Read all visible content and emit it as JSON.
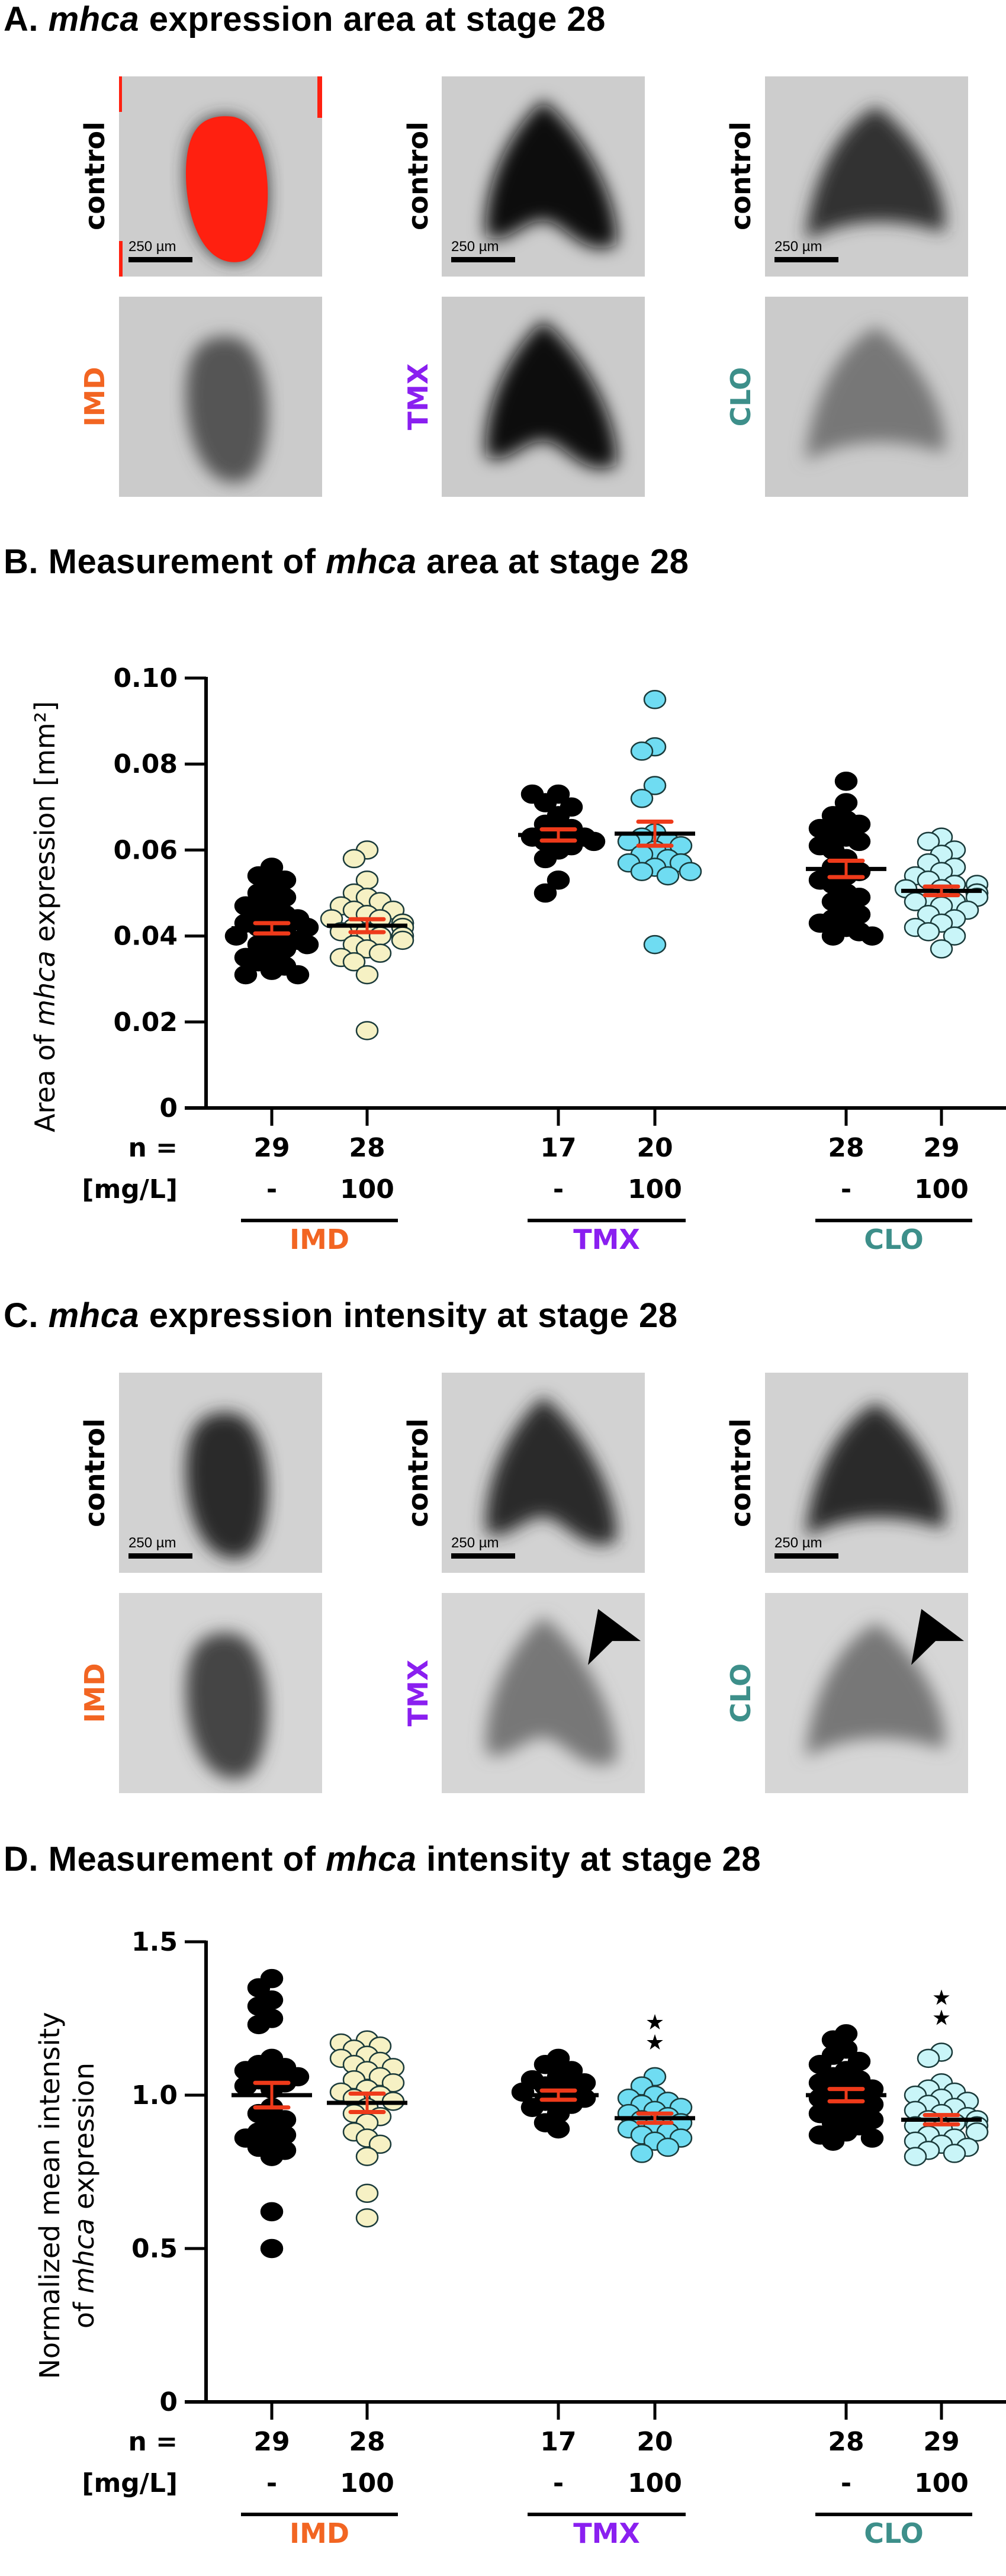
{
  "panels": {
    "A": {
      "letter": "A.",
      "title_italic": "mhca",
      "title_rest": " expression area at stage 28",
      "columns": [
        {
          "control_label": "control",
          "treated_label": "IMD",
          "scale_bar": "250 µm",
          "control_overlay": "red-threshold",
          "treated_intensity": "medium"
        },
        {
          "control_label": "control",
          "treated_label": "TMX",
          "scale_bar": "250 µm",
          "control_overlay": "none",
          "treated_intensity": "dark"
        },
        {
          "control_label": "control",
          "treated_label": "CLO",
          "scale_bar": "250 µm",
          "control_overlay": "none",
          "treated_intensity": "light"
        }
      ]
    },
    "B": {
      "letter": "B.",
      "title_pre": "Measurement of ",
      "title_italic": "mhca",
      "title_rest": " area at stage 28"
    },
    "C": {
      "letter": "C.",
      "title_italic": "mhca",
      "title_rest": " expression intensity at stage 28",
      "columns": [
        {
          "control_label": "control",
          "treated_label": "IMD",
          "scale_bar": "250 µm",
          "arrowhead": false
        },
        {
          "control_label": "control",
          "treated_label": "TMX",
          "scale_bar": "250 µm",
          "arrowhead": true
        },
        {
          "control_label": "control",
          "treated_label": "CLO",
          "scale_bar": "250 µm",
          "arrowhead": true
        }
      ]
    },
    "D": {
      "letter": "D.",
      "title_pre": "Measurement of ",
      "title_italic": "mhca",
      "title_rest": " intensity at stage 28"
    }
  },
  "colors": {
    "IMD": "#f26522",
    "TMX": "#8a1ff0",
    "CLO": "#3d8f8a",
    "control_point": "#000000",
    "IMD_treated_point": "#f6f1c4",
    "TMX_treated_point": "#6fdcf2",
    "CLO_treated_point": "#c9f5f8",
    "sem": "#ee3a1a",
    "overlay_red": "#ff2010"
  },
  "chart_data": [
    {
      "id": "B",
      "type": "scatter",
      "title": "Measurement of mhca area at stage 28",
      "ylabel_pre": "Area of ",
      "ylabel_italic": "mhca",
      "ylabel_post": " expression [mm²]",
      "ylim": [
        0,
        0.1
      ],
      "yticks": [
        0,
        0.02,
        0.04,
        0.06,
        0.08,
        0.1
      ],
      "ytick_labels": [
        "0",
        "0.02",
        "0.04",
        "0.06",
        "0.08",
        "0.10"
      ],
      "row_labels": {
        "n": "n =",
        "dose": "[mg/L]"
      },
      "groups": [
        {
          "compound": "IMD",
          "conditions": [
            {
              "dose": "-",
              "n": "29",
              "fill": "control",
              "mean": 0.0418,
              "sem": 0.0012,
              "values": [
                0.056,
                0.054,
                0.053,
                0.052,
                0.05,
                0.049,
                0.048,
                0.047,
                0.046,
                0.045,
                0.044,
                0.044,
                0.043,
                0.042,
                0.042,
                0.041,
                0.04,
                0.04,
                0.039,
                0.038,
                0.038,
                0.037,
                0.036,
                0.035,
                0.034,
                0.033,
                0.032,
                0.031,
                0.031
              ]
            },
            {
              "dose": "100",
              "n": "28",
              "fill": "IMD_treated",
              "mean": 0.0424,
              "sem": 0.0015,
              "values": [
                0.06,
                0.058,
                0.053,
                0.05,
                0.049,
                0.048,
                0.047,
                0.046,
                0.046,
                0.045,
                0.044,
                0.044,
                0.043,
                0.043,
                0.042,
                0.042,
                0.041,
                0.041,
                0.04,
                0.04,
                0.039,
                0.038,
                0.037,
                0.036,
                0.035,
                0.034,
                0.031,
                0.018
              ]
            }
          ]
        },
        {
          "compound": "TMX",
          "conditions": [
            {
              "dose": "-",
              "n": "17",
              "fill": "control",
              "mean": 0.0635,
              "sem": 0.0013,
              "values": [
                0.073,
                0.073,
                0.071,
                0.07,
                0.068,
                0.066,
                0.065,
                0.064,
                0.063,
                0.063,
                0.062,
                0.062,
                0.061,
                0.06,
                0.058,
                0.053,
                0.05
              ]
            },
            {
              "dose": "100",
              "n": "20",
              "fill": "TMX_treated",
              "mean": 0.0638,
              "sem": 0.0028,
              "values": [
                0.095,
                0.084,
                0.083,
                0.075,
                0.072,
                0.064,
                0.063,
                0.062,
                0.062,
                0.061,
                0.06,
                0.059,
                0.058,
                0.057,
                0.057,
                0.056,
                0.055,
                0.055,
                0.054,
                0.038
              ]
            }
          ]
        },
        {
          "compound": "CLO",
          "conditions": [
            {
              "dose": "-",
              "n": "28",
              "fill": "control",
              "mean": 0.0556,
              "sem": 0.0019,
              "values": [
                0.076,
                0.071,
                0.068,
                0.067,
                0.066,
                0.065,
                0.064,
                0.063,
                0.062,
                0.061,
                0.06,
                0.058,
                0.056,
                0.055,
                0.054,
                0.053,
                0.052,
                0.05,
                0.049,
                0.048,
                0.046,
                0.045,
                0.044,
                0.043,
                0.042,
                0.041,
                0.04,
                0.04
              ]
            },
            {
              "dose": "100",
              "n": "29",
              "fill": "CLO_treated",
              "mean": 0.0505,
              "sem": 0.001,
              "values": [
                0.063,
                0.062,
                0.06,
                0.059,
                0.057,
                0.056,
                0.055,
                0.054,
                0.053,
                0.052,
                0.052,
                0.051,
                0.051,
                0.05,
                0.05,
                0.05,
                0.049,
                0.049,
                0.048,
                0.048,
                0.047,
                0.046,
                0.045,
                0.044,
                0.043,
                0.042,
                0.041,
                0.04,
                0.037
              ]
            }
          ]
        }
      ]
    },
    {
      "id": "D",
      "type": "scatter",
      "title": "Measurement of mhca intensity at stage 28",
      "ylabel_line1": "Normalized mean intensity",
      "ylabel_pre": "of ",
      "ylabel_italic": "mhca",
      "ylabel_post": " expression",
      "ylim": [
        0,
        1.5
      ],
      "yticks": [
        0,
        0.5,
        1.0,
        1.5
      ],
      "ytick_labels": [
        "0",
        "0.5",
        "1.0",
        "1.5"
      ],
      "row_labels": {
        "n": "n =",
        "dose": "[mg/L]"
      },
      "groups": [
        {
          "compound": "IMD",
          "conditions": [
            {
              "dose": "-",
              "n": "29",
              "fill": "control",
              "mean": 1.0,
              "sem": 0.04,
              "significance": "",
              "values": [
                1.38,
                1.35,
                1.31,
                1.29,
                1.25,
                1.23,
                1.12,
                1.1,
                1.09,
                1.08,
                1.07,
                1.06,
                1.05,
                1.04,
                1.03,
                1.02,
                0.96,
                0.94,
                0.92,
                0.9,
                0.88,
                0.87,
                0.86,
                0.85,
                0.83,
                0.82,
                0.8,
                0.62,
                0.5
              ]
            },
            {
              "dose": "100",
              "n": "28",
              "fill": "IMD_treated",
              "mean": 0.975,
              "sem": 0.03,
              "significance": "",
              "values": [
                1.18,
                1.17,
                1.16,
                1.15,
                1.13,
                1.12,
                1.11,
                1.1,
                1.09,
                1.08,
                1.06,
                1.05,
                1.04,
                1.02,
                1.01,
                1.0,
                0.99,
                0.98,
                0.96,
                0.94,
                0.93,
                0.91,
                0.88,
                0.86,
                0.84,
                0.8,
                0.68,
                0.6
              ]
            }
          ]
        },
        {
          "compound": "TMX",
          "conditions": [
            {
              "dose": "-",
              "n": "17",
              "fill": "control",
              "mean": 1.0,
              "sem": 0.015,
              "significance": "",
              "values": [
                1.12,
                1.1,
                1.08,
                1.06,
                1.05,
                1.04,
                1.03,
                1.02,
                1.01,
                1.0,
                0.99,
                0.98,
                0.97,
                0.96,
                0.94,
                0.91,
                0.89
              ]
            },
            {
              "dose": "100",
              "n": "20",
              "fill": "TMX_treated",
              "mean": 0.925,
              "sem": 0.015,
              "significance": "★★",
              "values": [
                1.06,
                1.03,
                1.0,
                0.99,
                0.98,
                0.97,
                0.96,
                0.95,
                0.94,
                0.93,
                0.92,
                0.91,
                0.9,
                0.89,
                0.88,
                0.87,
                0.86,
                0.85,
                0.83,
                0.81
              ]
            }
          ]
        },
        {
          "compound": "CLO",
          "conditions": [
            {
              "dose": "-",
              "n": "28",
              "fill": "control",
              "mean": 1.0,
              "sem": 0.02,
              "significance": "",
              "values": [
                1.2,
                1.18,
                1.15,
                1.13,
                1.11,
                1.1,
                1.08,
                1.06,
                1.05,
                1.04,
                1.03,
                1.02,
                1.01,
                1.0,
                0.99,
                0.98,
                0.97,
                0.96,
                0.95,
                0.94,
                0.93,
                0.92,
                0.91,
                0.9,
                0.88,
                0.87,
                0.86,
                0.85
              ]
            },
            {
              "dose": "100",
              "n": "29",
              "fill": "CLO_treated",
              "mean": 0.92,
              "sem": 0.015,
              "significance": "★★",
              "values": [
                1.14,
                1.12,
                1.04,
                1.02,
                1.01,
                1.0,
                0.99,
                0.98,
                0.97,
                0.96,
                0.95,
                0.94,
                0.93,
                0.92,
                0.92,
                0.91,
                0.9,
                0.9,
                0.89,
                0.88,
                0.88,
                0.87,
                0.86,
                0.85,
                0.84,
                0.83,
                0.82,
                0.81,
                0.8
              ]
            }
          ]
        }
      ]
    }
  ]
}
